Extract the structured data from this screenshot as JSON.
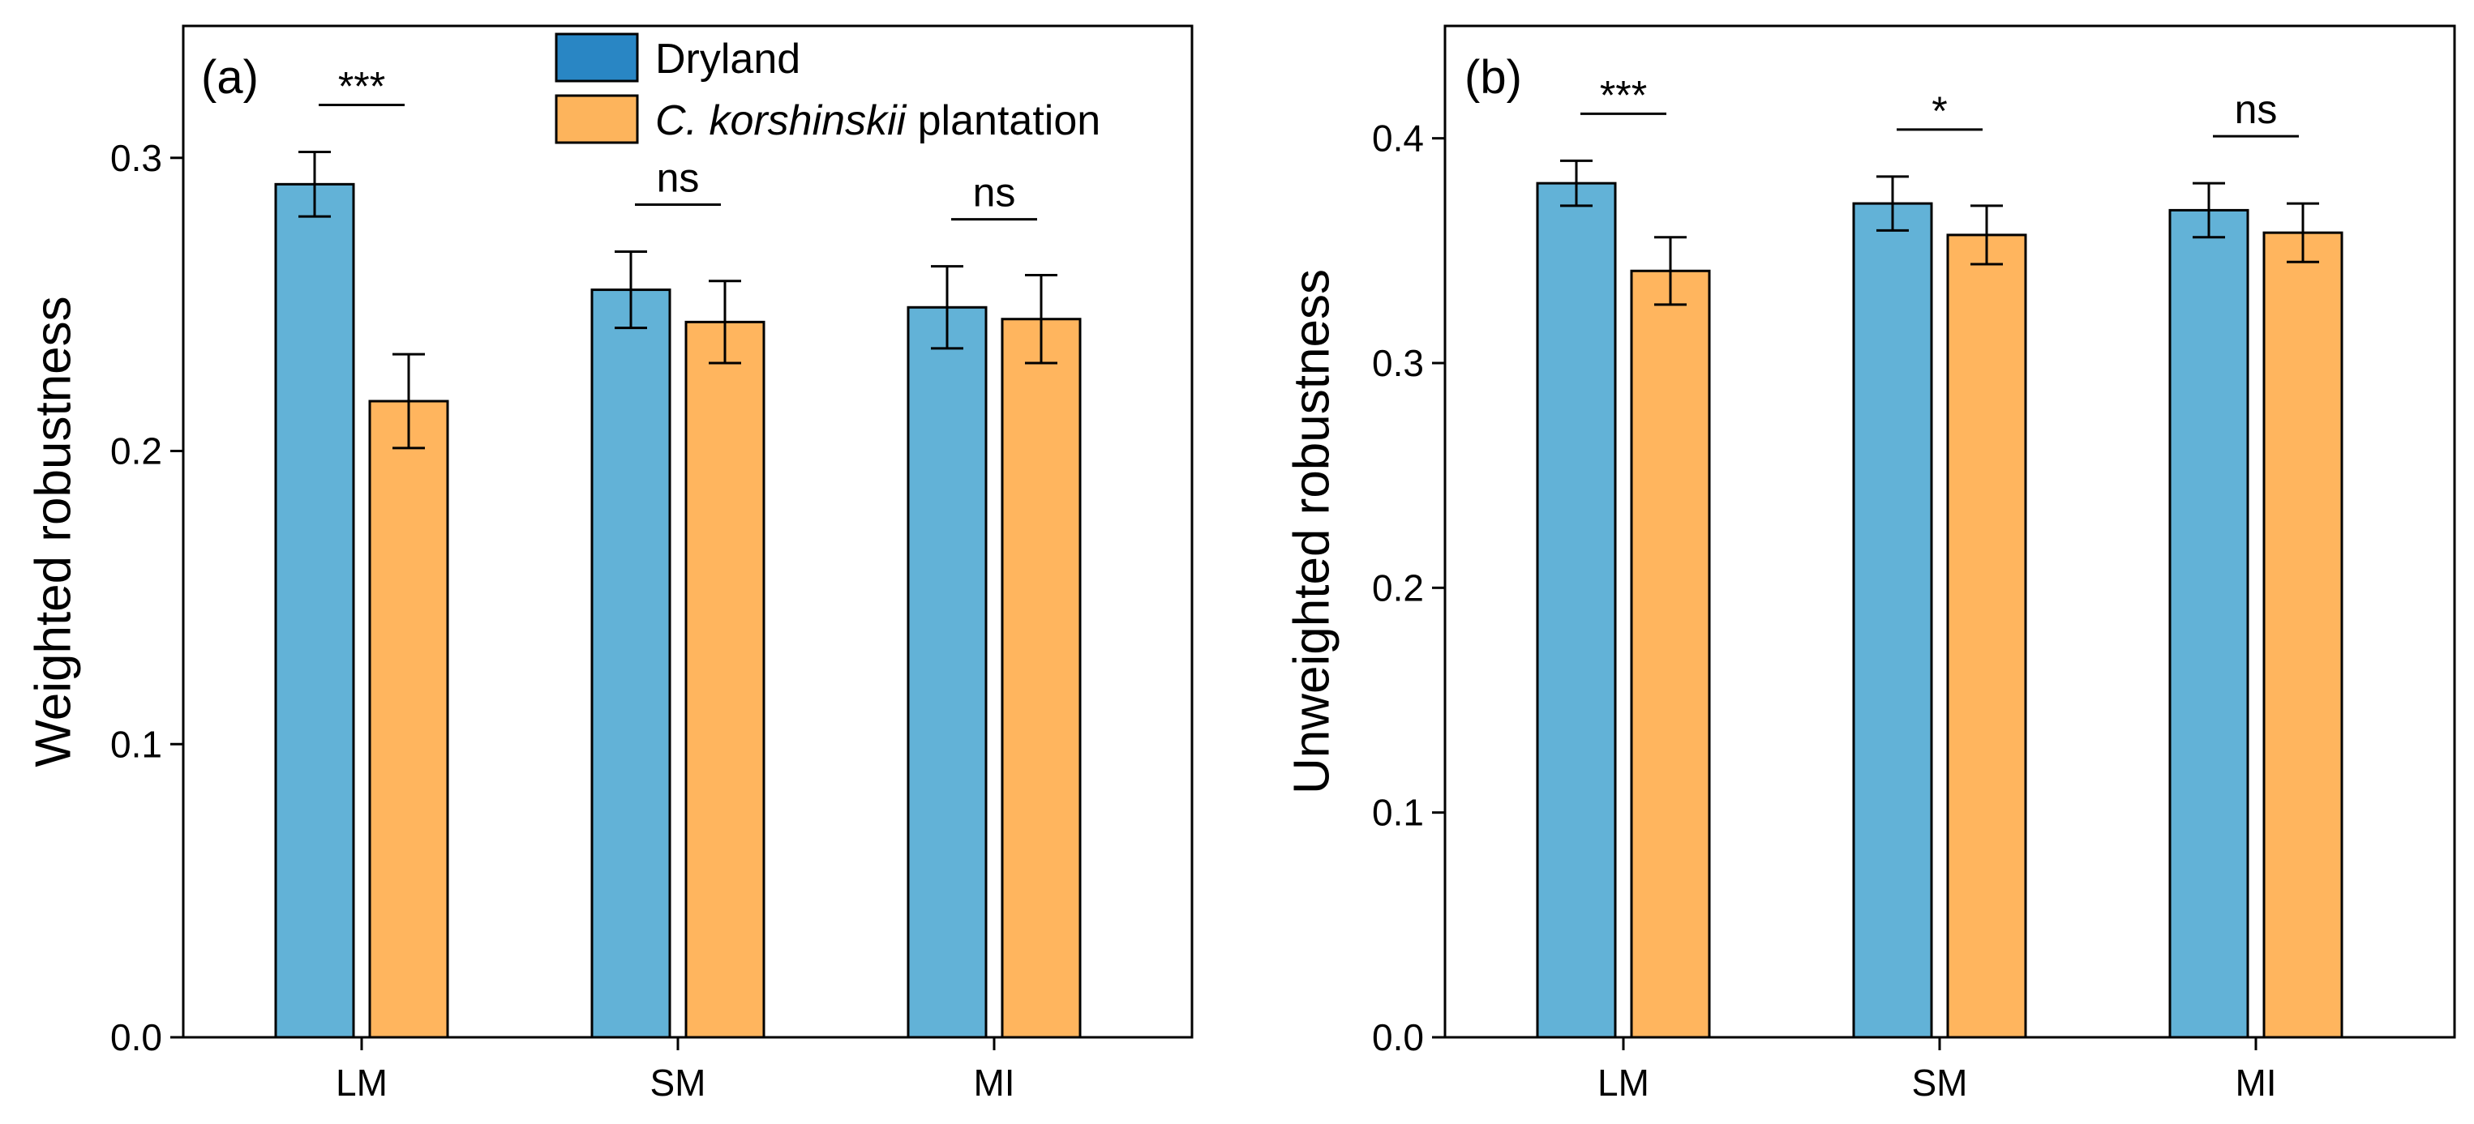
{
  "chart_data": [
    {
      "type": "bar",
      "panel_label": "(a)",
      "ylabel": "Weighted robustness",
      "xlabel": "",
      "ylim": [
        0,
        0.345
      ],
      "yticks": [
        0.0,
        0.1,
        0.2,
        0.3
      ],
      "ytick_labels": [
        "0.0",
        "0.1",
        "0.2",
        "0.3"
      ],
      "categories": [
        "LM",
        "SM",
        "MI"
      ],
      "series": [
        {
          "name": "Dryland",
          "values": [
            0.291,
            0.255,
            0.249
          ],
          "errors": [
            0.011,
            0.013,
            0.014
          ]
        },
        {
          "name": "C. korshinskii plantation",
          "values": [
            0.217,
            0.244,
            0.245
          ],
          "errors": [
            0.016,
            0.014,
            0.015
          ]
        }
      ],
      "significance": [
        "***",
        "ns",
        "ns"
      ],
      "grid": false
    },
    {
      "type": "bar",
      "panel_label": "(b)",
      "ylabel": "Unweighted robustness",
      "xlabel": "",
      "ylim": [
        0,
        0.45
      ],
      "yticks": [
        0.0,
        0.1,
        0.2,
        0.3,
        0.4
      ],
      "ytick_labels": [
        "0.0",
        "0.1",
        "0.2",
        "0.3",
        "0.4"
      ],
      "categories": [
        "LM",
        "SM",
        "MI"
      ],
      "series": [
        {
          "name": "Dryland",
          "values": [
            0.38,
            0.371,
            0.368
          ],
          "errors": [
            0.01,
            0.012,
            0.012
          ]
        },
        {
          "name": "C. korshinskii plantation",
          "values": [
            0.341,
            0.357,
            0.358
          ],
          "errors": [
            0.015,
            0.013,
            0.013
          ]
        }
      ],
      "significance": [
        "***",
        "*",
        "ns"
      ],
      "grid": false
    }
  ],
  "legend": {
    "placement": "top-center (panel a)",
    "entries": [
      {
        "name": "Dryland",
        "italic_part": "",
        "rest": "Dryland",
        "swatch_color": "#2986c4"
      },
      {
        "name": "C. korshinskii plantation",
        "italic_part": "C. korshinskii",
        "rest": " plantation",
        "swatch_color": "#fdb45c"
      }
    ]
  },
  "colors": {
    "dryland_bar": "#62b2d7",
    "plantation_bar": "#ffb55e",
    "dryland_legend": "#2986c4",
    "plantation_legend": "#fdb45c"
  }
}
